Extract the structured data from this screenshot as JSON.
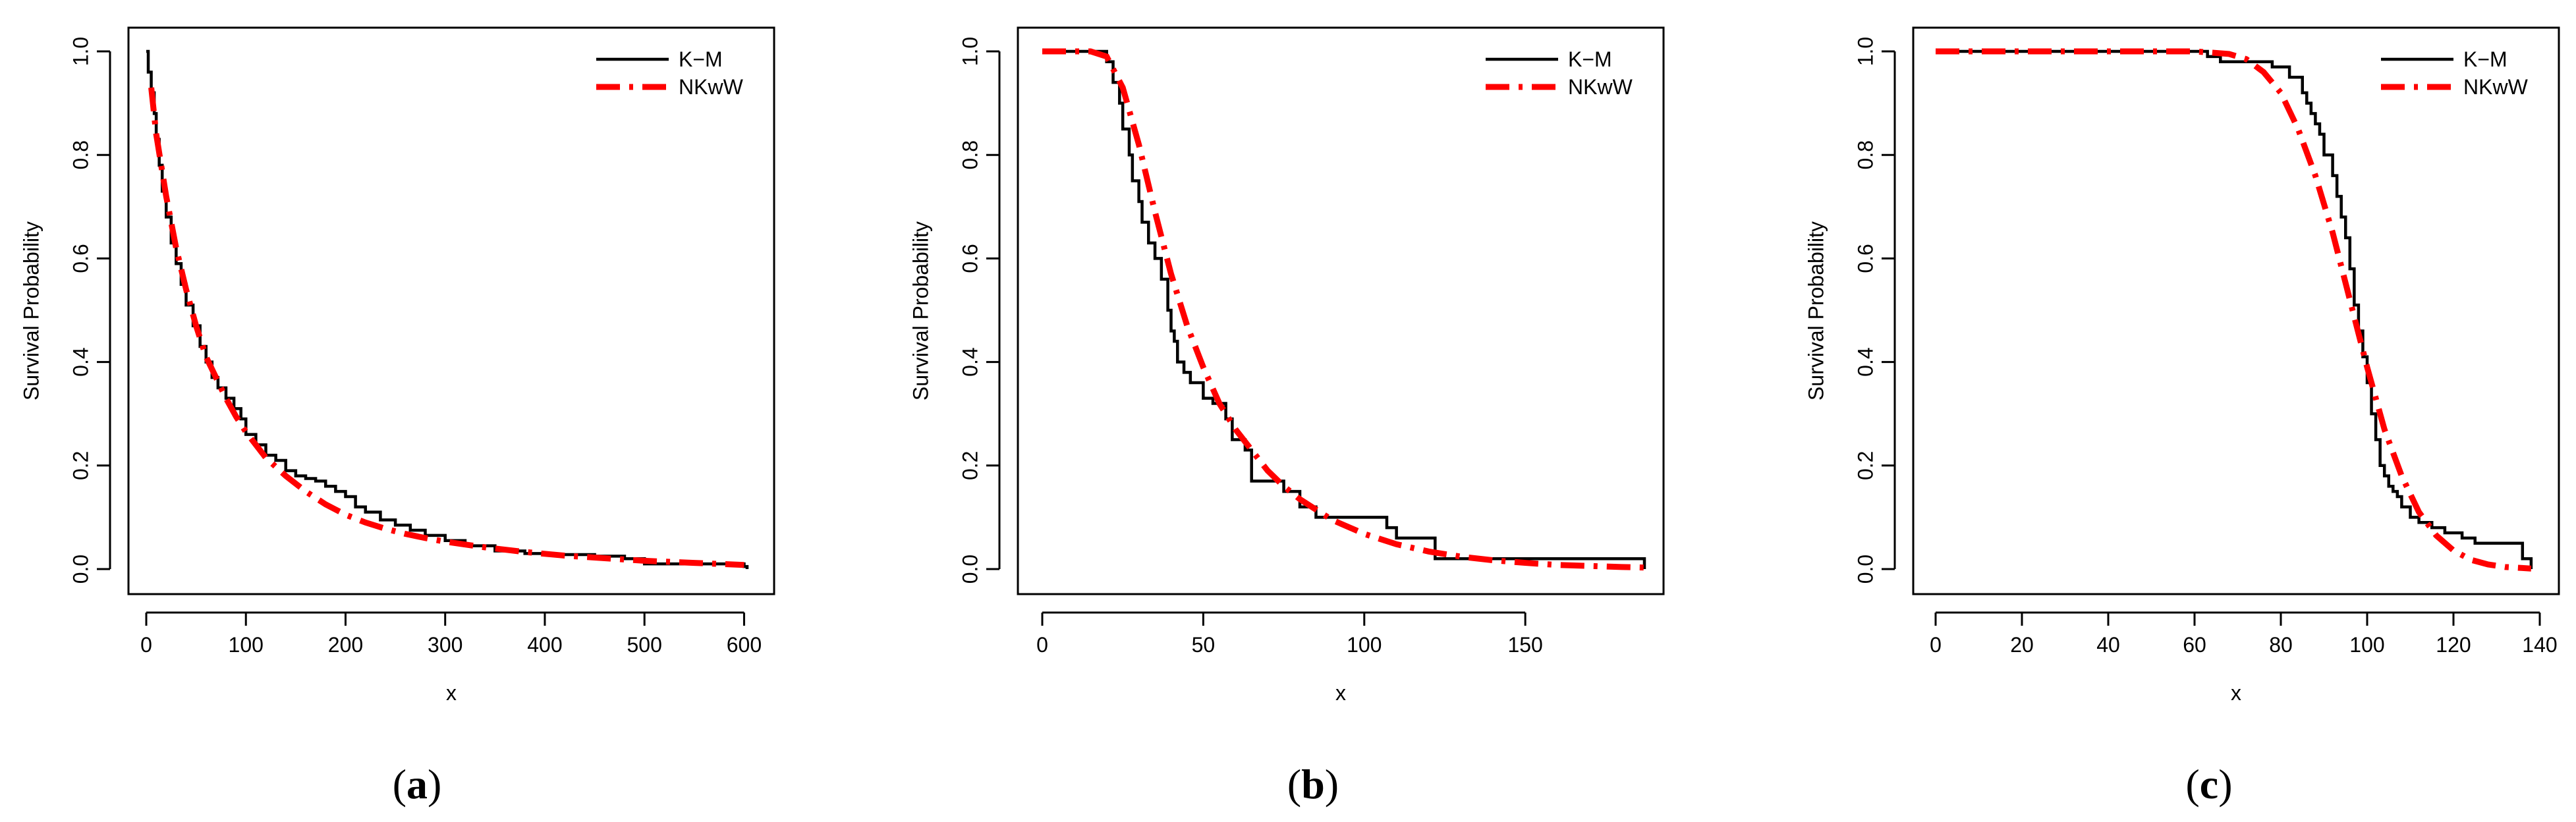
{
  "colors": {
    "km": "#000000",
    "nkww": "#ff0000",
    "axis": "#000000",
    "background": "#ffffff"
  },
  "chart_data": [
    {
      "type": "line",
      "panel_label": "(a)",
      "caption_letter": "a",
      "xlabel": "x",
      "ylabel": "Survival Probability",
      "xlim": [
        0,
        605
      ],
      "ylim": [
        0,
        1.0
      ],
      "x_ticks": [
        0,
        100,
        200,
        300,
        400,
        500,
        600
      ],
      "x_tick_labels": [
        "0",
        "100",
        "200",
        "300",
        "400",
        "500",
        "600"
      ],
      "y_ticks": [
        0,
        0.2,
        0.4,
        0.6,
        0.8,
        1.0
      ],
      "y_tick_labels": [
        "0.0",
        "0.2",
        "0.4",
        "0.6",
        "0.8",
        "1.0"
      ],
      "legend": {
        "position": "top-right",
        "entries": [
          "K−M",
          "NKwW"
        ]
      },
      "series": [
        {
          "name": "K−M",
          "style": "step",
          "x": [
            0,
            2,
            5,
            8,
            10,
            13,
            16,
            20,
            25,
            30,
            35,
            40,
            47,
            54,
            60,
            66,
            72,
            80,
            88,
            95,
            100,
            110,
            120,
            130,
            140,
            150,
            160,
            170,
            180,
            190,
            200,
            210,
            220,
            235,
            250,
            265,
            280,
            300,
            320,
            350,
            380,
            410,
            450,
            480,
            500,
            600,
            603
          ],
          "values": [
            1.0,
            0.96,
            0.92,
            0.88,
            0.83,
            0.78,
            0.73,
            0.68,
            0.63,
            0.59,
            0.55,
            0.51,
            0.47,
            0.43,
            0.4,
            0.37,
            0.35,
            0.33,
            0.31,
            0.29,
            0.26,
            0.24,
            0.22,
            0.21,
            0.19,
            0.18,
            0.175,
            0.17,
            0.16,
            0.15,
            0.14,
            0.12,
            0.11,
            0.095,
            0.085,
            0.075,
            0.065,
            0.055,
            0.045,
            0.035,
            0.03,
            0.028,
            0.025,
            0.02,
            0.01,
            0.005,
            0.0
          ]
        },
        {
          "name": "NKwW",
          "style": "dash-dot",
          "x": [
            5,
            10,
            20,
            30,
            40,
            50,
            60,
            70,
            80,
            90,
            100,
            120,
            140,
            160,
            180,
            200,
            220,
            240,
            260,
            280,
            300,
            340,
            380,
            420,
            460,
            500,
            550,
            600
          ],
          "values": [
            0.93,
            0.84,
            0.72,
            0.62,
            0.54,
            0.47,
            0.41,
            0.37,
            0.33,
            0.295,
            0.265,
            0.215,
            0.18,
            0.15,
            0.125,
            0.105,
            0.09,
            0.078,
            0.068,
            0.06,
            0.053,
            0.042,
            0.033,
            0.026,
            0.021,
            0.016,
            0.012,
            0.008
          ]
        }
      ]
    },
    {
      "type": "line",
      "panel_label": "(b)",
      "caption_letter": "b",
      "xlabel": "x",
      "ylabel": "Survival Probability",
      "xlim": [
        0,
        187
      ],
      "ylim": [
        0,
        1.0
      ],
      "x_ticks": [
        0,
        50,
        100,
        150
      ],
      "x_tick_labels": [
        "0",
        "50",
        "100",
        "150"
      ],
      "y_ticks": [
        0,
        0.2,
        0.4,
        0.6,
        0.8,
        1.0
      ],
      "y_tick_labels": [
        "0.0",
        "0.2",
        "0.4",
        "0.6",
        "0.8",
        "1.0"
      ],
      "legend": {
        "position": "top-right",
        "entries": [
          "K−M",
          "NKwW"
        ]
      },
      "series": [
        {
          "name": "K−M",
          "style": "step",
          "x": [
            0,
            20,
            22,
            24,
            25,
            27,
            28,
            30,
            31,
            33,
            35,
            37,
            39,
            40,
            41,
            42,
            44,
            46,
            50,
            53,
            57,
            59,
            63,
            65,
            70,
            75,
            80,
            85,
            100,
            107,
            110,
            122,
            185,
            187
          ],
          "values": [
            1.0,
            0.98,
            0.94,
            0.9,
            0.85,
            0.8,
            0.75,
            0.71,
            0.67,
            0.63,
            0.6,
            0.56,
            0.5,
            0.46,
            0.44,
            0.4,
            0.38,
            0.36,
            0.33,
            0.32,
            0.29,
            0.25,
            0.23,
            0.17,
            0.17,
            0.15,
            0.12,
            0.1,
            0.1,
            0.08,
            0.06,
            0.02,
            0.02,
            0.0
          ]
        },
        {
          "name": "NKwW",
          "style": "dash-dot",
          "x": [
            0,
            15,
            20,
            25,
            30,
            35,
            40,
            45,
            50,
            55,
            60,
            65,
            70,
            75,
            80,
            90,
            100,
            110,
            120,
            130,
            140,
            150,
            160,
            170,
            180,
            187
          ],
          "values": [
            1.0,
            1.0,
            0.99,
            0.93,
            0.82,
            0.69,
            0.57,
            0.47,
            0.39,
            0.32,
            0.27,
            0.23,
            0.19,
            0.16,
            0.135,
            0.095,
            0.068,
            0.048,
            0.034,
            0.024,
            0.017,
            0.012,
            0.008,
            0.006,
            0.004,
            0.003
          ]
        }
      ]
    },
    {
      "type": "line",
      "panel_label": "(c)",
      "caption_letter": "c",
      "xlabel": "x",
      "ylabel": "Survival Probability",
      "xlim": [
        0,
        140
      ],
      "ylim": [
        0,
        1.0
      ],
      "x_ticks": [
        0,
        20,
        40,
        60,
        80,
        100,
        120,
        140
      ],
      "x_tick_labels": [
        "0",
        "20",
        "40",
        "60",
        "80",
        "100",
        "120",
        "140"
      ],
      "y_ticks": [
        0,
        0.2,
        0.4,
        0.6,
        0.8,
        1.0
      ],
      "y_tick_labels": [
        "0.0",
        "0.2",
        "0.4",
        "0.6",
        "0.8",
        "1.0"
      ],
      "legend": {
        "position": "top-right",
        "entries": [
          "K−M",
          "NKwW"
        ]
      },
      "series": [
        {
          "name": "K−M",
          "style": "step",
          "x": [
            0,
            63,
            66,
            78,
            82,
            85,
            86,
            87,
            88,
            89,
            90,
            92,
            93,
            94,
            95,
            96,
            97,
            98,
            99,
            100,
            101,
            102,
            103,
            104,
            105,
            106,
            107,
            108,
            110,
            112,
            115,
            118,
            122,
            125,
            133,
            136,
            138
          ],
          "values": [
            1.0,
            0.99,
            0.98,
            0.97,
            0.95,
            0.92,
            0.9,
            0.88,
            0.86,
            0.84,
            0.8,
            0.76,
            0.72,
            0.68,
            0.64,
            0.58,
            0.51,
            0.46,
            0.41,
            0.36,
            0.3,
            0.25,
            0.2,
            0.18,
            0.16,
            0.15,
            0.14,
            0.12,
            0.1,
            0.09,
            0.08,
            0.07,
            0.06,
            0.05,
            0.05,
            0.02,
            0.0
          ]
        },
        {
          "name": "NKwW",
          "style": "dash-dot",
          "x": [
            0,
            60,
            68,
            72,
            76,
            80,
            84,
            88,
            92,
            96,
            100,
            104,
            108,
            112,
            116,
            120,
            124,
            128,
            132,
            136,
            138
          ],
          "values": [
            1.0,
            1.0,
            0.995,
            0.985,
            0.96,
            0.92,
            0.85,
            0.76,
            0.65,
            0.52,
            0.39,
            0.27,
            0.18,
            0.11,
            0.065,
            0.036,
            0.018,
            0.009,
            0.004,
            0.002,
            0.001
          ]
        }
      ]
    }
  ]
}
